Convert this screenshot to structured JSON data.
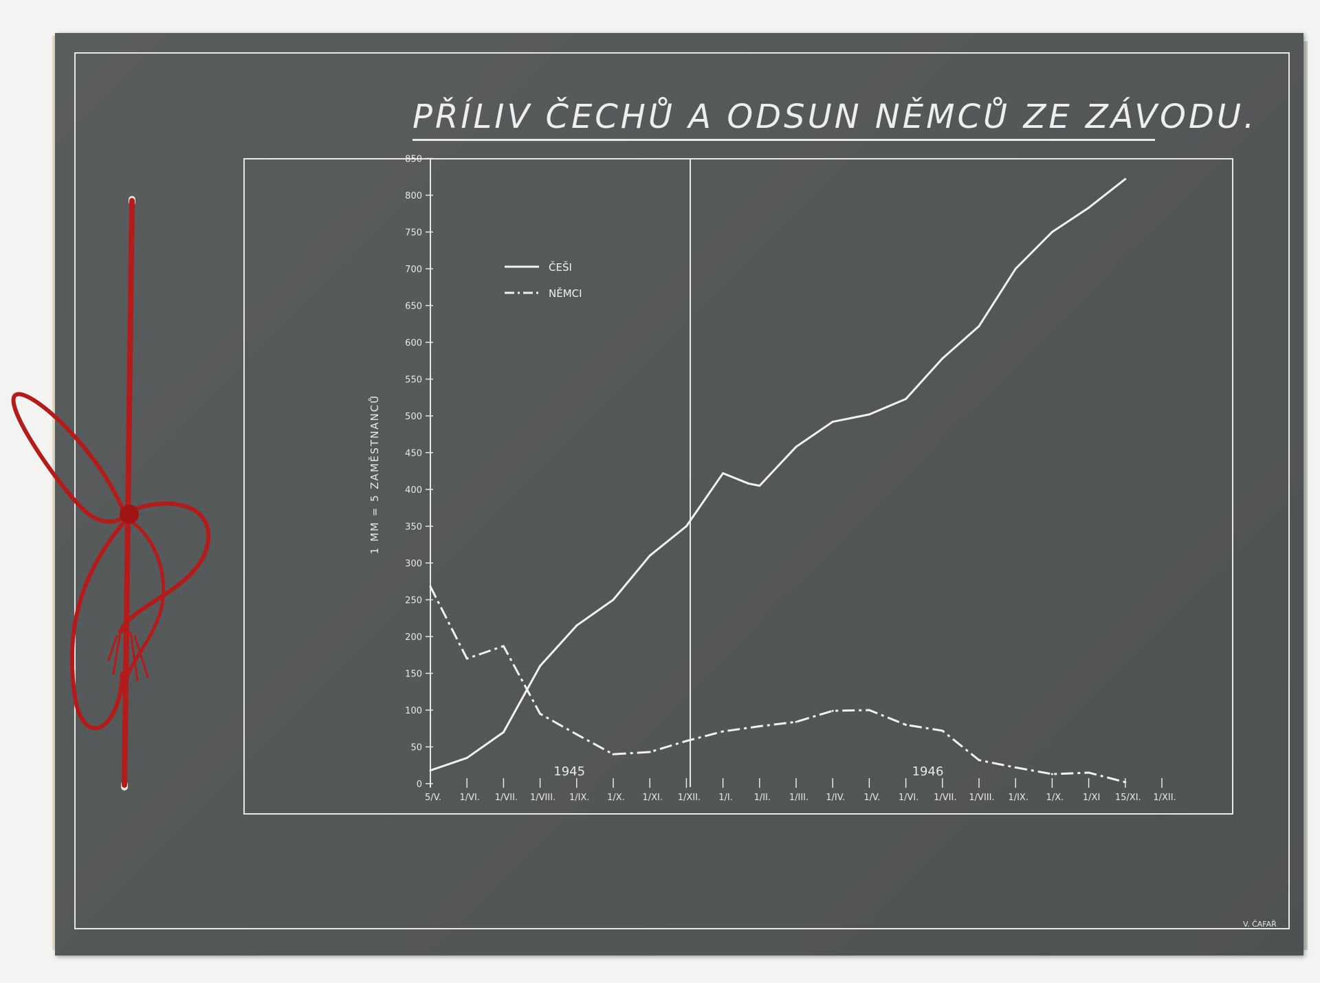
{
  "title": "PŘÍLIV ČECHŮ A ODSUN NĚMCŮ ZE ZÁVODU.",
  "signature": "V. ČAFAŘ",
  "chart_data": {
    "type": "line",
    "title": "PŘÍLIV ČECHŮ A ODSUN NĚMCŮ ZE ZÁVODU.",
    "ylabel": "1 MM = 5 ZAMĚSTNANCŮ",
    "ylim": [
      0,
      850
    ],
    "yticks": [
      "0",
      "50",
      "100",
      "150",
      "200",
      "250",
      "300",
      "350",
      "400",
      "450",
      "500",
      "550",
      "600",
      "650",
      "700",
      "750",
      "800",
      "850"
    ],
    "x_tick_labels": [
      "5/V.",
      "1/VI.",
      "1/VII.",
      "1/VIII.",
      "1/IX.",
      "1/X.",
      "1/XI.",
      "1/XII.",
      "1/I.",
      "1/II.",
      "1/III.",
      "1/IV.",
      "1/V.",
      "1/VI.",
      "1/VII.",
      "1/VIII.",
      "1/IX.",
      "1/X.",
      "1/XI",
      "15/XI.",
      "1/XII."
    ],
    "year_labels": [
      "1945",
      "1946"
    ],
    "legend": {
      "position": "top-left"
    },
    "series": [
      {
        "name": "ČEŠI",
        "style": "solid",
        "x": [
          0,
          1,
          2,
          3,
          4,
          5,
          6,
          7,
          8,
          8.7,
          9,
          10,
          11,
          12,
          13,
          14,
          15,
          16,
          17,
          18,
          19
        ],
        "values": [
          18,
          35,
          70,
          160,
          215,
          250,
          310,
          350,
          422,
          408,
          405,
          458,
          492,
          502,
          523,
          578,
          622,
          700,
          750,
          783,
          822
        ]
      },
      {
        "name": "NĚMCI",
        "style": "dash-dot",
        "x": [
          0,
          1,
          2,
          3,
          4,
          5,
          6,
          7,
          8,
          9,
          10,
          11,
          12,
          13,
          14,
          15,
          16,
          17,
          18,
          19
        ],
        "values": [
          268,
          170,
          187,
          95,
          67,
          40,
          43,
          58,
          71,
          78,
          84,
          99,
          100,
          80,
          72,
          32,
          22,
          13,
          15,
          2
        ]
      }
    ]
  }
}
